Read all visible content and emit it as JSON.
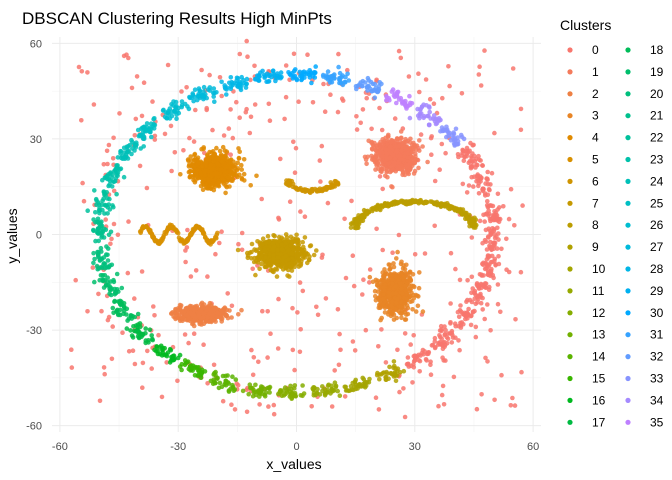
{
  "chart_data": {
    "type": "scatter",
    "title": "DBSCAN Clustering Results High MinPts",
    "xlabel": "x_values",
    "ylabel": "y_values",
    "xlim": [
      -62,
      62
    ],
    "ylim": [
      -62,
      62
    ],
    "x_ticks": [
      -60,
      -30,
      0,
      30,
      60
    ],
    "y_ticks": [
      -60,
      -30,
      0,
      30,
      60
    ],
    "x_tick_labels": [
      "-60",
      "-30",
      "0",
      "30",
      "60"
    ],
    "y_tick_labels": [
      "-60",
      "-30",
      "0",
      "30",
      "60"
    ],
    "grid": true,
    "legend": {
      "title": "Clusters",
      "placement": "right",
      "columns": 2,
      "entries": [
        "0",
        "1",
        "2",
        "3",
        "4",
        "5",
        "6",
        "7",
        "8",
        "9",
        "10",
        "11",
        "12",
        "13",
        "14",
        "15",
        "16",
        "17",
        "18",
        "19",
        "20",
        "21",
        "22",
        "23",
        "24",
        "25",
        "26",
        "27",
        "28",
        "29",
        "30",
        "31",
        "32",
        "33",
        "34",
        "35"
      ],
      "colors": [
        "#F8766D",
        "#F47B5C",
        "#EE8044",
        "#E88526",
        "#E08A00",
        "#D89000",
        "#CF9400",
        "#C59900",
        "#BB9D00",
        "#B0A100",
        "#A3A500",
        "#96A900",
        "#85AD00",
        "#72B000",
        "#5BB300",
        "#39B600",
        "#00B81F",
        "#00BA42",
        "#00BC59",
        "#00BE6C",
        "#00BF7D",
        "#00C08D",
        "#00C19C",
        "#00C1AA",
        "#00C0B8",
        "#00BFC4",
        "#00BDD0",
        "#00BADB",
        "#00B6E6",
        "#00B0F0",
        "#00A9FF",
        "#35A2FF",
        "#619CFF",
        "#8794FF",
        "#A58AFF",
        "#BE80FF"
      ]
    },
    "clusters": [
      {
        "id": "0",
        "role": "noise",
        "shape": "scatter",
        "points": "uniform noise across [-58,58]"
      },
      {
        "id": "1",
        "shape": "blob",
        "center": [
          25,
          25
        ],
        "spread": [
          4.5,
          4.5
        ],
        "n": 700
      },
      {
        "id": "2",
        "shape": "blob",
        "center": [
          -24,
          -25
        ],
        "spread": [
          5.5,
          2.2
        ],
        "n": 450
      },
      {
        "id": "3",
        "shape": "blob",
        "center": [
          25,
          -18
        ],
        "spread": [
          3.8,
          6.0
        ],
        "n": 650
      },
      {
        "id": "4",
        "shape": "blob",
        "center": [
          -21,
          20
        ],
        "spread": [
          5.0,
          4.5
        ],
        "n": 650
      },
      {
        "id": "5",
        "shape": "wave",
        "x_range": [
          -40,
          -20
        ],
        "y": 0,
        "amplitude": 2.5,
        "n": 160
      },
      {
        "id": "6",
        "shape": "arc",
        "center": [
          4,
          17
        ],
        "radius": 6,
        "n": 90
      },
      {
        "id": "7",
        "shape": "blob",
        "center": [
          -4,
          -6
        ],
        "spread": [
          5.5,
          4.2
        ],
        "n": 650
      },
      {
        "id": "8",
        "shape": "arc",
        "center": [
          30,
          2
        ],
        "radius": 15,
        "n": 300
      },
      {
        "id": "9-35",
        "shape": "ring segments",
        "ring_center": [
          0,
          0
        ],
        "ring_radius": 50,
        "points_per_segment": 35
      }
    ]
  }
}
